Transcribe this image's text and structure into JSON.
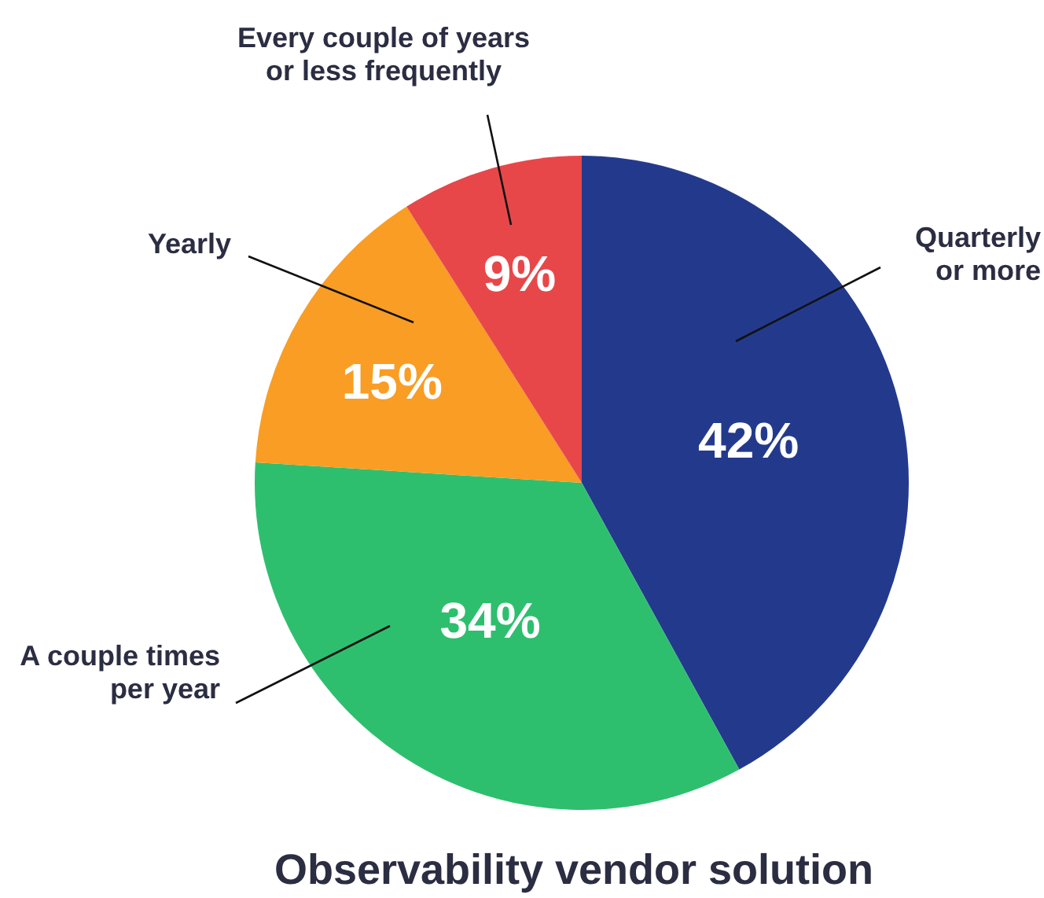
{
  "chart_data": {
    "type": "pie",
    "title": "Observability vendor solution",
    "categories": [
      "Quarterly\nor more",
      "A couple times\nper year",
      "Yearly",
      "Every couple of years\nor less frequently"
    ],
    "values": [
      42,
      34,
      15,
      9
    ],
    "colors": [
      "#233a8c",
      "#2ebf6e",
      "#f99d24",
      "#e8474a"
    ],
    "value_labels": [
      "42%",
      "34%",
      "15%",
      "9%"
    ]
  }
}
